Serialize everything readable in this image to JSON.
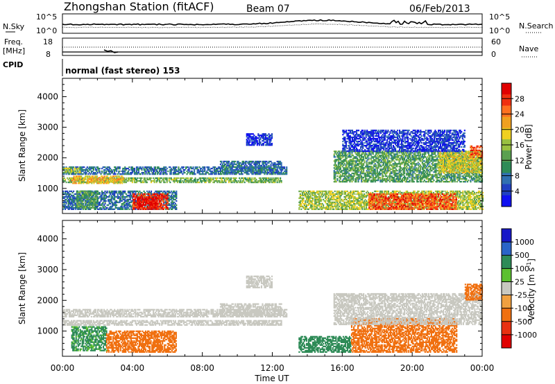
{
  "header": {
    "station": "Zhongshan Station (fitACF)",
    "beam": "Beam 07",
    "date": "06/Feb/2013"
  },
  "noise_panel": {
    "left_label": "N.Sky",
    "left_ticks": [
      "10^5",
      "10^0"
    ],
    "right_label": "N.Search",
    "right_ticks": [
      "10^5",
      "10^0"
    ]
  },
  "freq_panel": {
    "left_label_1": "Freq.",
    "left_label_2": "[MHz]",
    "left_ticks": [
      "18",
      "8"
    ],
    "right_label": "Nave",
    "right_ticks": [
      "60",
      "0"
    ]
  },
  "cpid_panel": {
    "label": "CPID",
    "text": "normal (fast stereo) 153"
  },
  "chart_data": [
    {
      "type": "heatmap",
      "panel": "power",
      "xlabel": "Time UT",
      "ylabel": "Slant Range [km]",
      "x_ticks": [
        "00:00",
        "04:00",
        "08:00",
        "12:00",
        "16:00",
        "20:00",
        "00:00"
      ],
      "xlim_hours": [
        0,
        24
      ],
      "y_ticks": [
        1000,
        2000,
        3000,
        4000
      ],
      "ylim": [
        180,
        4600
      ],
      "colorbar": {
        "label": "Power [dB]",
        "ticks": [
          "4",
          "8",
          "12",
          "16",
          "20",
          "24",
          "28"
        ],
        "colors": [
          "#1010f0",
          "#2040c0",
          "#3070b0",
          "#2e8b57",
          "#5aa050",
          "#99c040",
          "#f0d020",
          "#f0a020",
          "#ff7020",
          "#f03010",
          "#e00000"
        ]
      },
      "echo_regions": [
        {
          "t0": 0.0,
          "t1": 12.8,
          "r0": 1450,
          "r1": 1720,
          "level": 8
        },
        {
          "t0": 0.0,
          "t1": 1.0,
          "r0": 1500,
          "r1": 1650,
          "level": 16
        },
        {
          "t0": 0.0,
          "t1": 12.5,
          "r0": 1180,
          "r1": 1340,
          "level": 14
        },
        {
          "t0": 0.5,
          "t1": 3.5,
          "r0": 1150,
          "r1": 1380,
          "level": 20
        },
        {
          "t0": 0.0,
          "t1": 6.5,
          "r0": 300,
          "r1": 900,
          "level": 8
        },
        {
          "t0": 0.8,
          "t1": 2.0,
          "r0": 350,
          "r1": 900,
          "level": 12
        },
        {
          "t0": 4.0,
          "t1": 6.0,
          "r0": 300,
          "r1": 800,
          "level": 28
        },
        {
          "t0": 4.3,
          "t1": 5.4,
          "r0": 350,
          "r1": 700,
          "level": 30
        },
        {
          "t0": 9.0,
          "t1": 12.5,
          "r0": 1500,
          "r1": 1900,
          "level": 8
        },
        {
          "t0": 10.5,
          "t1": 12.0,
          "r0": 2400,
          "r1": 2800,
          "level": 4
        },
        {
          "t0": 13.5,
          "t1": 24.0,
          "r0": 300,
          "r1": 900,
          "level": 16
        },
        {
          "t0": 17.5,
          "t1": 22.5,
          "r0": 300,
          "r1": 800,
          "level": 26
        },
        {
          "t0": 15.5,
          "t1": 24.0,
          "r0": 1200,
          "r1": 2200,
          "level": 12
        },
        {
          "t0": 21.5,
          "t1": 24.0,
          "r0": 1500,
          "r1": 2200,
          "level": 18
        },
        {
          "t0": 23.3,
          "t1": 24.0,
          "r0": 2000,
          "r1": 2400,
          "level": 26
        },
        {
          "t0": 16.0,
          "t1": 23.0,
          "r0": 2200,
          "r1": 2900,
          "level": 4
        }
      ]
    },
    {
      "type": "heatmap",
      "panel": "velocity",
      "xlabel": "Time UT",
      "ylabel": "Slant Range [km]",
      "x_ticks": [
        "00:00",
        "04:00",
        "08:00",
        "12:00",
        "16:00",
        "20:00",
        "00:00"
      ],
      "xlim_hours": [
        0,
        24
      ],
      "y_ticks": [
        1000,
        2000,
        3000,
        4000
      ],
      "ylim": [
        180,
        4600
      ],
      "colorbar": {
        "label": "Velocity [m s",
        "label_exp": "-1",
        "ticks": [
          "1000",
          "500",
          "100",
          "25",
          "-25",
          "-100",
          "-500",
          "-1000"
        ],
        "colors": [
          "#1818c8",
          "#2a64c8",
          "#2e8b57",
          "#5cc030",
          "#c8c8c0",
          "#f0a040",
          "#f07010",
          "#e83010",
          "#e00000"
        ]
      },
      "echo_regions": [
        {
          "t0": 0.0,
          "t1": 12.8,
          "r0": 1450,
          "r1": 1720,
          "level": 0
        },
        {
          "t0": 0.0,
          "t1": 12.5,
          "r0": 1180,
          "r1": 1340,
          "level": 0
        },
        {
          "t0": 0.5,
          "t1": 2.5,
          "r0": 350,
          "r1": 1150,
          "level": 120
        },
        {
          "t0": 2.5,
          "t1": 6.5,
          "r0": 300,
          "r1": 1000,
          "level": -250
        },
        {
          "t0": 9.0,
          "t1": 12.5,
          "r0": 1500,
          "r1": 1900,
          "level": 0
        },
        {
          "t0": 10.5,
          "t1": 12.0,
          "r0": 2400,
          "r1": 2800,
          "level": 0
        },
        {
          "t0": 13.5,
          "t1": 16.5,
          "r0": 300,
          "r1": 800,
          "level": 150
        },
        {
          "t0": 16.5,
          "t1": 22.5,
          "r0": 300,
          "r1": 1400,
          "level": -200
        },
        {
          "t0": 15.5,
          "t1": 24.0,
          "r0": 1200,
          "r1": 2200,
          "level": 0
        },
        {
          "t0": 23.0,
          "t1": 24.0,
          "r0": 2000,
          "r1": 2500,
          "level": -200
        }
      ]
    }
  ]
}
